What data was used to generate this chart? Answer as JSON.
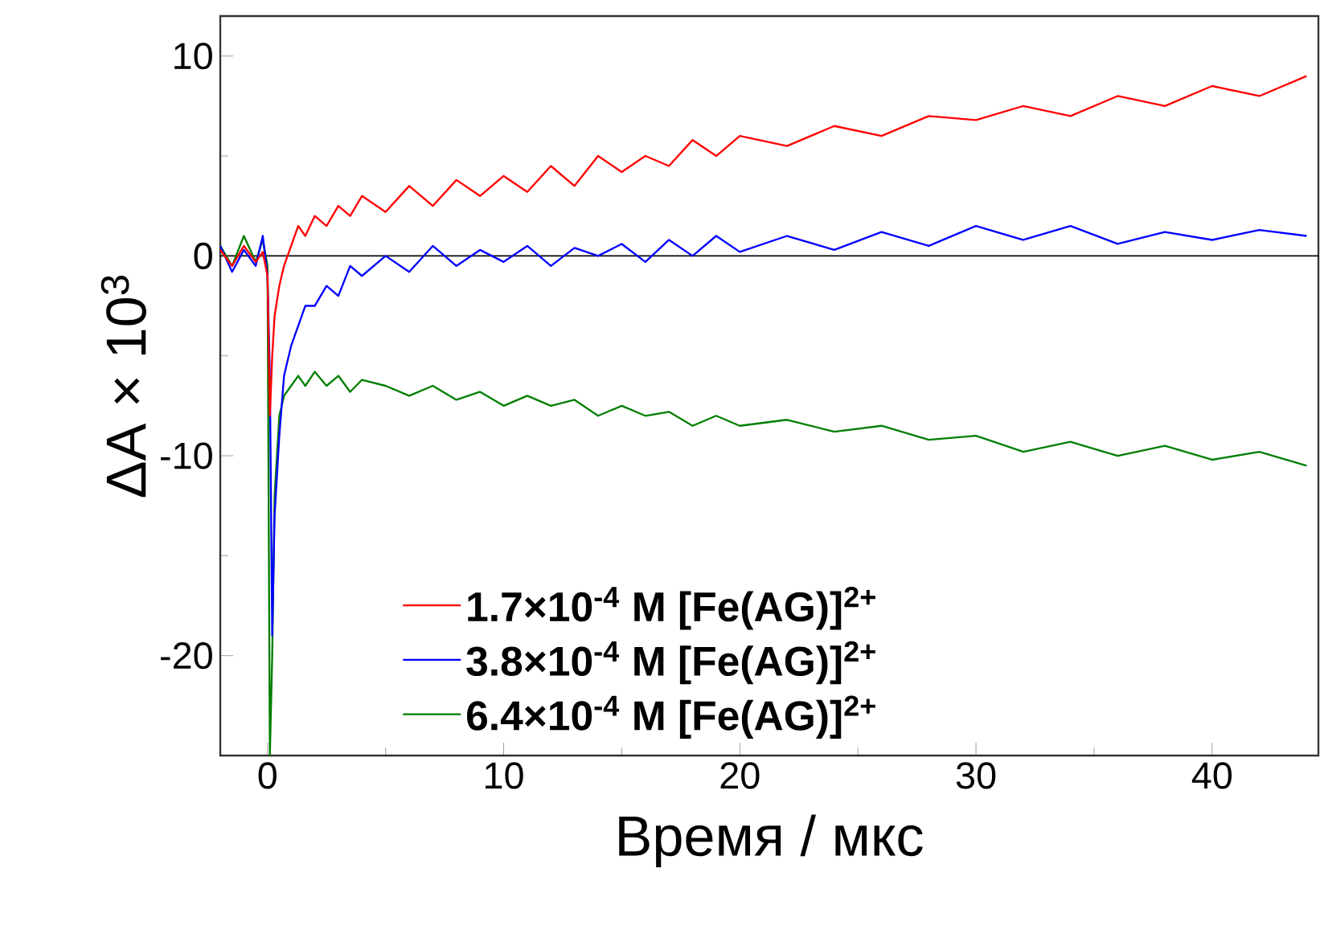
{
  "chart_data": {
    "type": "line",
    "xlabel": "Время / мкс",
    "ylabel": "ΔA × 10$^{3}$",
    "x": [
      -2,
      -1.5,
      -1,
      -0.5,
      -0.2,
      0,
      0.1,
      0.2,
      0.3,
      0.5,
      0.7,
      1,
      1.3,
      1.6,
      2,
      2.5,
      3,
      3.5,
      4,
      5,
      6,
      7,
      8,
      9,
      10,
      11,
      12,
      13,
      14,
      15,
      16,
      17,
      18,
      19,
      20,
      22,
      24,
      26,
      28,
      30,
      32,
      34,
      36,
      38,
      40,
      42,
      44
    ],
    "series": [
      {
        "name": "1.7×10$^{-4}$ M [Fe(AG)]$^{2+}$",
        "color": "#ff0000",
        "values": [
          0.3,
          -0.5,
          0.5,
          -0.3,
          0.2,
          -1,
          -8,
          -5,
          -3,
          -1.5,
          -0.5,
          0.5,
          1.5,
          1,
          2,
          1.5,
          2.5,
          2,
          3,
          2.2,
          3.5,
          2.5,
          3.8,
          3,
          4,
          3.2,
          4.5,
          3.5,
          5,
          4.2,
          5,
          4.5,
          5.8,
          5,
          6,
          5.5,
          6.5,
          6,
          7,
          6.8,
          7.5,
          7,
          8,
          7.5,
          8.5,
          8,
          9
        ]
      },
      {
        "name": "3.8×10$^{-4}$ M [Fe(AG)]$^{2+}$",
        "color": "#0000ff",
        "values": [
          0.5,
          -0.8,
          0.3,
          -0.5,
          1,
          -1,
          -6,
          -19,
          -13,
          -9,
          -6,
          -4.5,
          -3.5,
          -2.5,
          -2.5,
          -1.5,
          -2,
          -0.5,
          -1,
          0,
          -0.8,
          0.5,
          -0.5,
          0.3,
          -0.3,
          0.5,
          -0.5,
          0.4,
          0,
          0.6,
          -0.3,
          0.8,
          0,
          1,
          0.2,
          1,
          0.3,
          1.2,
          0.5,
          1.5,
          0.8,
          1.5,
          0.6,
          1.2,
          0.8,
          1.3,
          1
        ]
      },
      {
        "name": "6.4×10$^{-4}$ M [Fe(AG)]$^{2+}$",
        "color": "#007f00",
        "values": [
          0.5,
          -0.5,
          1,
          -0.3,
          0.8,
          -0.5,
          -25,
          -20,
          -12,
          -8,
          -7,
          -6.5,
          -6,
          -6.5,
          -5.8,
          -6.5,
          -6,
          -6.8,
          -6.2,
          -6.5,
          -7,
          -6.5,
          -7.2,
          -6.8,
          -7.5,
          -7,
          -7.5,
          -7.2,
          -8,
          -7.5,
          -8,
          -7.8,
          -8.5,
          -8,
          -8.5,
          -8.2,
          -8.8,
          -8.5,
          -9.2,
          -9,
          -9.8,
          -9.3,
          -10,
          -9.5,
          -10.2,
          -9.8,
          -10.5
        ]
      }
    ],
    "xlim": [
      -2,
      44.5
    ],
    "ylim": [
      -25,
      12
    ],
    "xticks": [
      0,
      10,
      20,
      30,
      40
    ],
    "yticks": [
      -20,
      -10,
      0,
      10
    ],
    "ref_lines": [
      {
        "axis": "y",
        "value": 0,
        "color": "#000000"
      }
    ],
    "legend": "bottom",
    "marker": "none",
    "line_style": "solid",
    "grid": false
  }
}
